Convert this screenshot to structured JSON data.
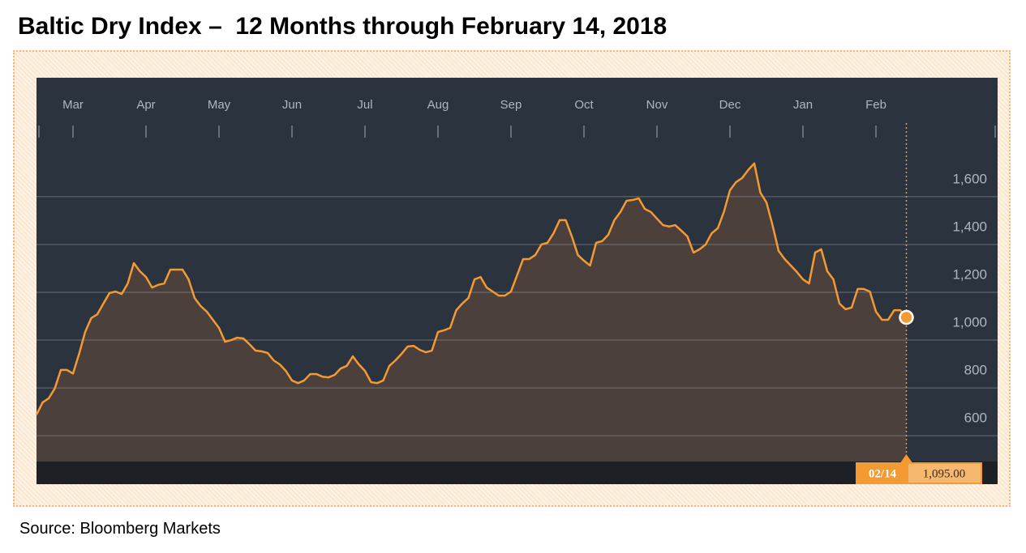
{
  "chart_data": {
    "type": "area",
    "title": "Baltic Dry Index –  12 Months through February 14, 2018",
    "source": "Source: Bloomberg Markets",
    "x": [
      0,
      1,
      2,
      3,
      4,
      5,
      6,
      7,
      8,
      9,
      10,
      11,
      12,
      13,
      14,
      15,
      16,
      17,
      18,
      19,
      20,
      21,
      22,
      23,
      24,
      25,
      26,
      27,
      28,
      29,
      30,
      31,
      32,
      33,
      34,
      35,
      36,
      37,
      38,
      39,
      40,
      41,
      42,
      43,
      44,
      45,
      46,
      47,
      48,
      49,
      50,
      51,
      52,
      53,
      54,
      55,
      56,
      57,
      58,
      59,
      60,
      61,
      62,
      63,
      64,
      65,
      66,
      67,
      68,
      69,
      70,
      71,
      72,
      73,
      74,
      75,
      76,
      77,
      78,
      79,
      80,
      81,
      82,
      83,
      84,
      85,
      86,
      87,
      88,
      89,
      90,
      91,
      92,
      93,
      94,
      95,
      96,
      97,
      98,
      99,
      100,
      101,
      102,
      103,
      104,
      105,
      106,
      107,
      108,
      109,
      110,
      111,
      112,
      113,
      114,
      115,
      116,
      117,
      118,
      119,
      120,
      121,
      122,
      123,
      124,
      125,
      126,
      127,
      128,
      129,
      130,
      131,
      132,
      133,
      134,
      135,
      136,
      137,
      138,
      139,
      140,
      141,
      142,
      143
    ],
    "series": [
      {
        "name": "Baltic Dry Index",
        "color": "#f39a33",
        "fill": "#4b403b",
        "values": [
          688,
          739,
          756,
          797,
          875,
          875,
          860,
          942,
          1034,
          1092,
          1108,
          1153,
          1197,
          1203,
          1193,
          1237,
          1322,
          1288,
          1264,
          1220,
          1231,
          1237,
          1295,
          1295,
          1295,
          1254,
          1176,
          1142,
          1119,
          1085,
          1051,
          993,
          1000,
          1010,
          1007,
          983,
          956,
          953,
          946,
          915,
          898,
          871,
          831,
          820,
          831,
          858,
          858,
          847,
          844,
          854,
          881,
          892,
          932,
          898,
          871,
          824,
          820,
          831,
          892,
          915,
          942,
          973,
          976,
          959,
          949,
          956,
          1034,
          1041,
          1051,
          1125,
          1153,
          1176,
          1254,
          1264,
          1220,
          1203,
          1186,
          1186,
          1203,
          1271,
          1339,
          1339,
          1356,
          1400,
          1407,
          1447,
          1502,
          1502,
          1434,
          1356,
          1332,
          1312,
          1407,
          1414,
          1441,
          1502,
          1536,
          1583,
          1586,
          1593,
          1549,
          1536,
          1508,
          1481,
          1475,
          1481,
          1458,
          1434,
          1366,
          1380,
          1400,
          1447,
          1468,
          1536,
          1627,
          1661,
          1678,
          1712,
          1739,
          1617,
          1576,
          1481,
          1373,
          1339,
          1312,
          1285,
          1254,
          1237,
          1366,
          1380,
          1288,
          1254,
          1153,
          1129,
          1136,
          1214,
          1214,
          1203,
          1119,
          1085,
          1085,
          1125,
          1125,
          1095
        ]
      }
    ],
    "xlim": [
      0,
      158
    ],
    "xticks": [
      {
        "value": 6,
        "label": "Mar"
      },
      {
        "value": 18,
        "label": "Apr"
      },
      {
        "value": 30,
        "label": "May"
      },
      {
        "value": 42,
        "label": "Jun"
      },
      {
        "value": 54,
        "label": "Jul"
      },
      {
        "value": 66,
        "label": "Aug"
      },
      {
        "value": 78,
        "label": "Sep"
      },
      {
        "value": 90,
        "label": "Oct"
      },
      {
        "value": 102,
        "label": "Nov"
      },
      {
        "value": 114,
        "label": "Dec"
      },
      {
        "value": 126,
        "label": "Jan"
      },
      {
        "value": 138,
        "label": "Feb"
      }
    ],
    "ylim": [
      492,
      1847
    ],
    "yticks": [
      600,
      800,
      {
        "value": 1000,
        "label": "1,000"
      },
      {
        "value": 1200,
        "label": "1,200"
      },
      {
        "value": 1400,
        "label": "1,400"
      },
      {
        "value": 1600,
        "label": "1,600"
      }
    ],
    "grid": true,
    "cursor": {
      "label": "02/14",
      "value": 1095,
      "value_label": "1,095.00",
      "color": "#f39a33"
    }
  }
}
